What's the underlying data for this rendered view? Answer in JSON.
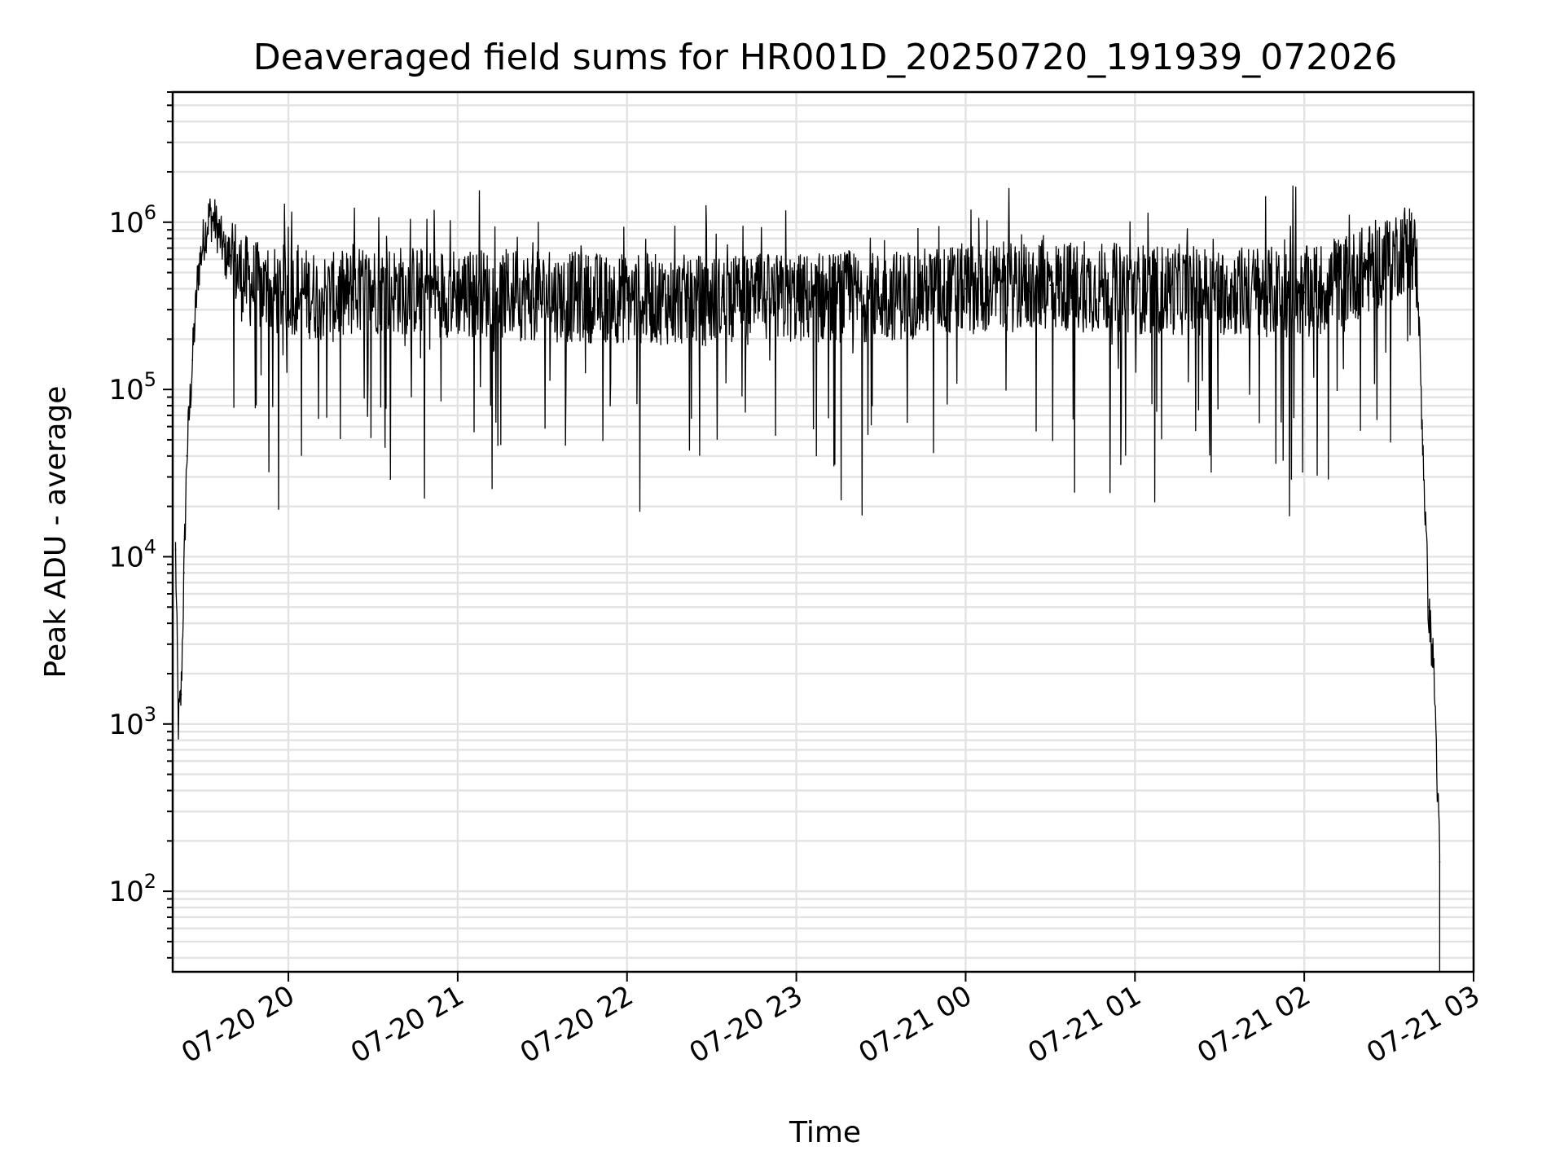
{
  "chart_data": {
    "type": "line",
    "title": "Deaveraged field sums for HR001D_20250720_191939_072026",
    "xlabel": "Time",
    "ylabel": "Peak ADU - average",
    "yscale": "log",
    "grid": true,
    "x_ticks": [
      "07-20 20",
      "07-20 21",
      "07-20 22",
      "07-20 23",
      "07-21 00",
      "07-21 01",
      "07-21 02",
      "07-21 03"
    ],
    "y_ticks": [
      {
        "base": "10",
        "exp": "2"
      },
      {
        "base": "10",
        "exp": "3"
      },
      {
        "base": "10",
        "exp": "4"
      },
      {
        "base": "10",
        "exp": "5"
      },
      {
        "base": "10",
        "exp": "6"
      }
    ],
    "xlim": [
      "2025-07-20 19:19",
      "2025-07-21 03:00"
    ],
    "ylim": [
      33,
      6000000
    ],
    "line_color": "#000000",
    "series": [
      {
        "x": [
          "2025-07-20 19:20",
          "2025-07-20 19:21",
          "2025-07-20 19:22",
          "2025-07-20 19:23",
          "2025-07-20 19:24",
          "2025-07-20 19:26",
          "2025-07-20 19:28",
          "2025-07-20 19:30",
          "2025-07-20 19:32",
          "2025-07-20 19:34",
          "2025-07-20 19:36",
          "2025-07-20 19:38",
          "2025-07-20 19:40",
          "2025-07-20 19:42",
          "2025-07-20 19:45",
          "2025-07-20 19:50",
          "2025-07-20 19:55",
          "2025-07-20 20:00",
          "2025-07-20 20:15",
          "2025-07-20 20:30",
          "2025-07-20 21:00",
          "2025-07-20 21:30",
          "2025-07-20 22:00",
          "2025-07-20 22:30",
          "2025-07-20 23:00",
          "2025-07-20 23:30",
          "2025-07-21 00:00",
          "2025-07-21 00:30",
          "2025-07-21 01:00",
          "2025-07-21 01:30",
          "2025-07-21 02:00",
          "2025-07-21 02:10",
          "2025-07-21 02:20",
          "2025-07-21 02:30",
          "2025-07-21 02:35",
          "2025-07-21 02:38",
          "2025-07-21 02:40",
          "2025-07-21 02:42",
          "2025-07-21 02:44",
          "2025-07-21 02:46",
          "2025-07-21 02:48"
        ],
        "y": [
          11000,
          1000,
          1500,
          8000,
          40000,
          150000,
          500000,
          800000,
          1100000,
          1000000,
          800000,
          600000,
          700000,
          500000,
          450000,
          400000,
          380000,
          400000,
          350000,
          400000,
          380000,
          360000,
          350000,
          340000,
          350000,
          360000,
          400000,
          420000,
          400000,
          390000,
          380000,
          420000,
          500000,
          600000,
          700000,
          750000,
          500000,
          50000,
          5000,
          2000,
          150
        ]
      }
    ]
  }
}
